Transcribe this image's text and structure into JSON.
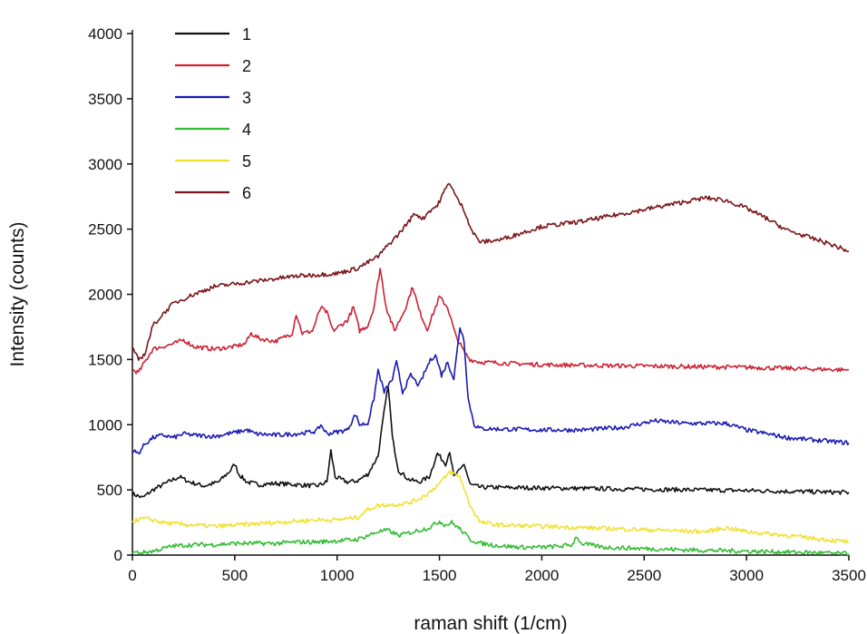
{
  "chart_data": {
    "type": "line",
    "xlabel": "raman shift (1/cm)",
    "ylabel": "Intensity (counts)",
    "xlim": [
      0,
      3500
    ],
    "ylim": [
      0,
      4000
    ],
    "x_ticks": [
      0,
      500,
      1000,
      1500,
      2000,
      2500,
      3000,
      3500
    ],
    "x_tick_labels": [
      "0",
      "500",
      "1000",
      "1500",
      "2000",
      "2500",
      "3000",
      "3500"
    ],
    "y_ticks": [
      0,
      500,
      1000,
      1500,
      2000,
      2500,
      3000,
      3500,
      4000
    ],
    "y_tick_labels": [
      "0",
      "500",
      "1000",
      "1500",
      "2000",
      "2500",
      "3000",
      "3500",
      "4000"
    ],
    "grid": false,
    "legend_position": "top-left",
    "series": [
      {
        "name": "1",
        "color": "#111111",
        "points": [
          [
            0,
            470
          ],
          [
            50,
            440
          ],
          [
            100,
            500
          ],
          [
            150,
            540
          ],
          [
            200,
            580
          ],
          [
            230,
            600
          ],
          [
            280,
            560
          ],
          [
            350,
            530
          ],
          [
            420,
            560
          ],
          [
            480,
            650
          ],
          [
            500,
            700
          ],
          [
            520,
            620
          ],
          [
            560,
            560
          ],
          [
            620,
            540
          ],
          [
            700,
            550
          ],
          [
            800,
            540
          ],
          [
            900,
            530
          ],
          [
            950,
            560
          ],
          [
            970,
            800
          ],
          [
            990,
            600
          ],
          [
            1050,
            560
          ],
          [
            1100,
            570
          ],
          [
            1150,
            620
          ],
          [
            1200,
            760
          ],
          [
            1230,
            1100
          ],
          [
            1250,
            1300
          ],
          [
            1270,
            900
          ],
          [
            1300,
            650
          ],
          [
            1350,
            580
          ],
          [
            1400,
            560
          ],
          [
            1450,
            600
          ],
          [
            1490,
            780
          ],
          [
            1510,
            740
          ],
          [
            1530,
            700
          ],
          [
            1550,
            800
          ],
          [
            1570,
            600
          ],
          [
            1600,
            650
          ],
          [
            1620,
            700
          ],
          [
            1650,
            540
          ],
          [
            1700,
            520
          ],
          [
            2000,
            515
          ],
          [
            2500,
            505
          ],
          [
            3000,
            495
          ],
          [
            3500,
            480
          ]
        ]
      },
      {
        "name": "2",
        "color": "#cc2233",
        "points": [
          [
            0,
            1420
          ],
          [
            30,
            1400
          ],
          [
            60,
            1480
          ],
          [
            100,
            1580
          ],
          [
            150,
            1600
          ],
          [
            200,
            1620
          ],
          [
            250,
            1650
          ],
          [
            300,
            1600
          ],
          [
            400,
            1580
          ],
          [
            500,
            1600
          ],
          [
            550,
            1620
          ],
          [
            580,
            1700
          ],
          [
            620,
            1660
          ],
          [
            700,
            1640
          ],
          [
            780,
            1700
          ],
          [
            800,
            1850
          ],
          [
            830,
            1700
          ],
          [
            880,
            1720
          ],
          [
            920,
            1900
          ],
          [
            950,
            1860
          ],
          [
            980,
            1720
          ],
          [
            1050,
            1800
          ],
          [
            1080,
            1900
          ],
          [
            1110,
            1720
          ],
          [
            1150,
            1760
          ],
          [
            1180,
            1900
          ],
          [
            1210,
            2200
          ],
          [
            1240,
            1900
          ],
          [
            1280,
            1720
          ],
          [
            1330,
            1880
          ],
          [
            1370,
            2060
          ],
          [
            1400,
            1880
          ],
          [
            1440,
            1730
          ],
          [
            1500,
            1980
          ],
          [
            1540,
            1900
          ],
          [
            1580,
            1680
          ],
          [
            1620,
            1560
          ],
          [
            1650,
            1500
          ],
          [
            1700,
            1480
          ],
          [
            2000,
            1460
          ],
          [
            2500,
            1450
          ],
          [
            3000,
            1440
          ],
          [
            3500,
            1420
          ]
        ]
      },
      {
        "name": "3",
        "color": "#1a1ab3",
        "points": [
          [
            0,
            800
          ],
          [
            30,
            780
          ],
          [
            60,
            850
          ],
          [
            100,
            900
          ],
          [
            150,
            920
          ],
          [
            200,
            900
          ],
          [
            250,
            930
          ],
          [
            300,
            920
          ],
          [
            400,
            910
          ],
          [
            500,
            940
          ],
          [
            560,
            960
          ],
          [
            600,
            930
          ],
          [
            700,
            920
          ],
          [
            800,
            930
          ],
          [
            900,
            950
          ],
          [
            920,
            1000
          ],
          [
            950,
            930
          ],
          [
            1050,
            960
          ],
          [
            1090,
            1080
          ],
          [
            1110,
            1000
          ],
          [
            1150,
            1010
          ],
          [
            1180,
            1200
          ],
          [
            1200,
            1420
          ],
          [
            1230,
            1250
          ],
          [
            1270,
            1350
          ],
          [
            1290,
            1480
          ],
          [
            1320,
            1250
          ],
          [
            1360,
            1380
          ],
          [
            1400,
            1300
          ],
          [
            1450,
            1480
          ],
          [
            1480,
            1540
          ],
          [
            1510,
            1380
          ],
          [
            1540,
            1480
          ],
          [
            1570,
            1350
          ],
          [
            1600,
            1750
          ],
          [
            1620,
            1650
          ],
          [
            1640,
            1200
          ],
          [
            1670,
            1000
          ],
          [
            1700,
            970
          ],
          [
            2000,
            960
          ],
          [
            2200,
            960
          ],
          [
            2400,
            980
          ],
          [
            2550,
            1030
          ],
          [
            2700,
            1010
          ],
          [
            2800,
            1010
          ],
          [
            2900,
            1010
          ],
          [
            3000,
            960
          ],
          [
            3200,
            900
          ],
          [
            3500,
            860
          ]
        ]
      },
      {
        "name": "4",
        "color": "#33bb33",
        "points": [
          [
            0,
            20
          ],
          [
            50,
            20
          ],
          [
            100,
            30
          ],
          [
            150,
            50
          ],
          [
            200,
            70
          ],
          [
            300,
            80
          ],
          [
            400,
            80
          ],
          [
            500,
            90
          ],
          [
            600,
            90
          ],
          [
            700,
            90
          ],
          [
            800,
            100
          ],
          [
            900,
            100
          ],
          [
            1000,
            110
          ],
          [
            1100,
            120
          ],
          [
            1150,
            150
          ],
          [
            1200,
            180
          ],
          [
            1250,
            190
          ],
          [
            1300,
            150
          ],
          [
            1350,
            170
          ],
          [
            1400,
            190
          ],
          [
            1450,
            210
          ],
          [
            1500,
            260
          ],
          [
            1530,
            230
          ],
          [
            1560,
            250
          ],
          [
            1600,
            200
          ],
          [
            1650,
            120
          ],
          [
            1700,
            90
          ],
          [
            1800,
            70
          ],
          [
            1900,
            60
          ],
          [
            2000,
            60
          ],
          [
            2100,
            70
          ],
          [
            2150,
            80
          ],
          [
            2170,
            150
          ],
          [
            2190,
            90
          ],
          [
            2300,
            60
          ],
          [
            2500,
            50
          ],
          [
            2700,
            40
          ],
          [
            3000,
            30
          ],
          [
            3300,
            20
          ],
          [
            3500,
            10
          ]
        ]
      },
      {
        "name": "5",
        "color": "#f2e030",
        "points": [
          [
            0,
            260
          ],
          [
            50,
            280
          ],
          [
            100,
            270
          ],
          [
            150,
            250
          ],
          [
            200,
            240
          ],
          [
            300,
            230
          ],
          [
            400,
            220
          ],
          [
            500,
            230
          ],
          [
            600,
            240
          ],
          [
            700,
            250
          ],
          [
            800,
            260
          ],
          [
            900,
            270
          ],
          [
            1000,
            270
          ],
          [
            1100,
            290
          ],
          [
            1150,
            350
          ],
          [
            1200,
            380
          ],
          [
            1300,
            390
          ],
          [
            1350,
            400
          ],
          [
            1400,
            430
          ],
          [
            1450,
            480
          ],
          [
            1500,
            550
          ],
          [
            1530,
            600
          ],
          [
            1550,
            640
          ],
          [
            1600,
            600
          ],
          [
            1650,
            380
          ],
          [
            1700,
            250
          ],
          [
            1800,
            230
          ],
          [
            2000,
            220
          ],
          [
            2200,
            210
          ],
          [
            2400,
            200
          ],
          [
            2600,
            190
          ],
          [
            2800,
            180
          ],
          [
            2900,
            210
          ],
          [
            3000,
            180
          ],
          [
            3200,
            150
          ],
          [
            3500,
            100
          ]
        ]
      },
      {
        "name": "6",
        "color": "#7a1418",
        "points": [
          [
            0,
            1580
          ],
          [
            30,
            1500
          ],
          [
            60,
            1540
          ],
          [
            100,
            1760
          ],
          [
            150,
            1850
          ],
          [
            200,
            1930
          ],
          [
            300,
            2000
          ],
          [
            400,
            2060
          ],
          [
            500,
            2080
          ],
          [
            600,
            2100
          ],
          [
            700,
            2120
          ],
          [
            800,
            2140
          ],
          [
            900,
            2150
          ],
          [
            1000,
            2160
          ],
          [
            1100,
            2200
          ],
          [
            1200,
            2290
          ],
          [
            1250,
            2380
          ],
          [
            1300,
            2460
          ],
          [
            1350,
            2560
          ],
          [
            1380,
            2620
          ],
          [
            1420,
            2580
          ],
          [
            1450,
            2640
          ],
          [
            1490,
            2680
          ],
          [
            1520,
            2780
          ],
          [
            1550,
            2860
          ],
          [
            1580,
            2750
          ],
          [
            1620,
            2650
          ],
          [
            1660,
            2480
          ],
          [
            1700,
            2400
          ],
          [
            1800,
            2420
          ],
          [
            1900,
            2470
          ],
          [
            2000,
            2520
          ],
          [
            2100,
            2540
          ],
          [
            2200,
            2560
          ],
          [
            2300,
            2590
          ],
          [
            2400,
            2620
          ],
          [
            2500,
            2650
          ],
          [
            2600,
            2680
          ],
          [
            2700,
            2710
          ],
          [
            2800,
            2740
          ],
          [
            2900,
            2720
          ],
          [
            3000,
            2660
          ],
          [
            3100,
            2580
          ],
          [
            3200,
            2490
          ],
          [
            3300,
            2440
          ],
          [
            3400,
            2390
          ],
          [
            3500,
            2330
          ]
        ]
      }
    ]
  }
}
